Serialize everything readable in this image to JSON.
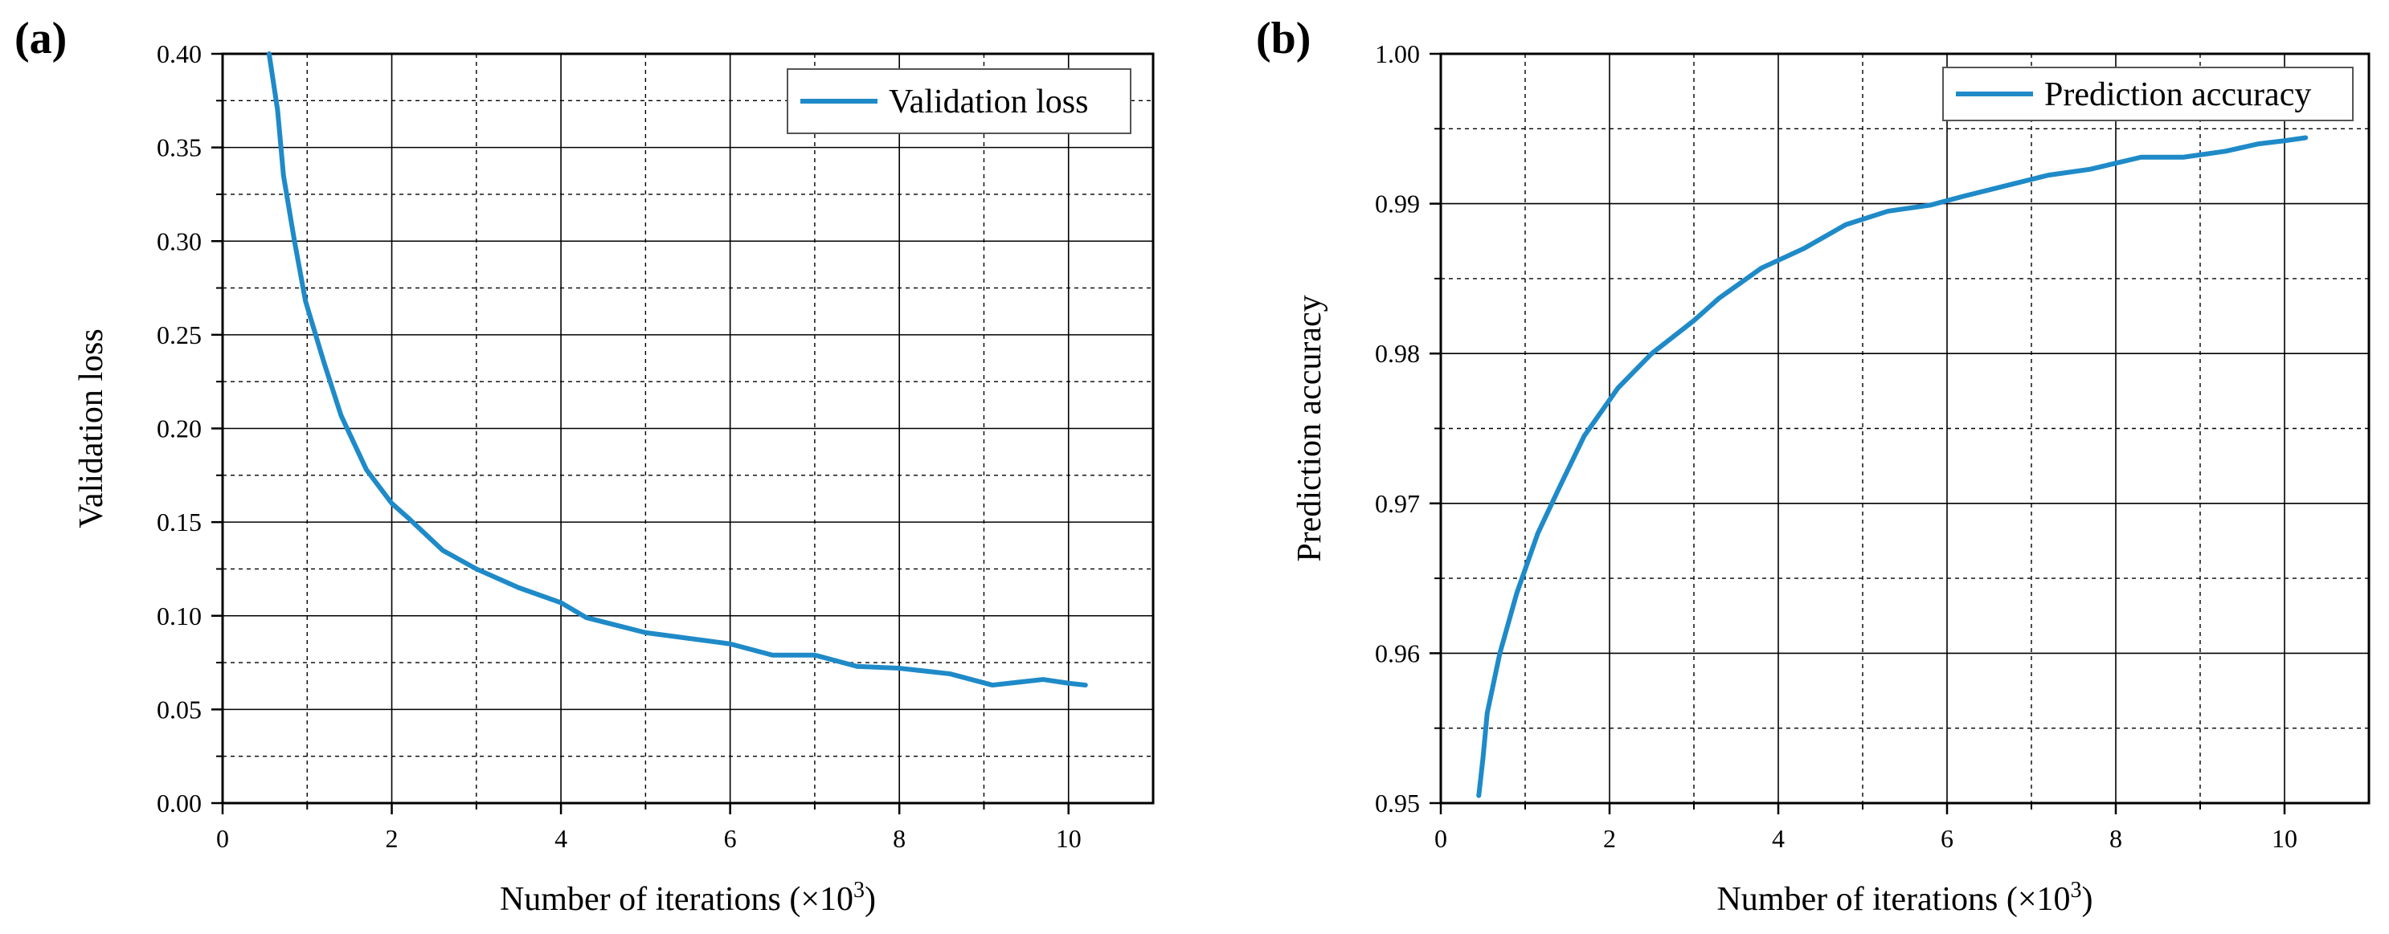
{
  "colors": {
    "series": "#1f8ac8",
    "axis": "#000000",
    "grid": "#000000",
    "minor_grid": "#7a7a7a"
  },
  "chart_data": [
    {
      "type": "line",
      "panel_label": "(a)",
      "xlabel": "Number of iterations (×10",
      "xlabel_sup": "3",
      "xlabel_end": ")",
      "ylabel": "Validation loss",
      "xlim": [
        0,
        11
      ],
      "ylim": [
        0,
        0.4
      ],
      "xticks": [
        0,
        2,
        4,
        6,
        8,
        10
      ],
      "xtick_labels": [
        "0",
        "2",
        "4",
        "6",
        "8",
        "10"
      ],
      "yticks": [
        0,
        0.05,
        0.1,
        0.15,
        0.2,
        0.25,
        0.3,
        0.35,
        0.4
      ],
      "ytick_labels": [
        "0.00",
        "0.05",
        "0.10",
        "0.15",
        "0.20",
        "0.25",
        "0.30",
        "0.35",
        "0.40"
      ],
      "major_grid_x": [
        2,
        4,
        6,
        8,
        10
      ],
      "minor_grid_x": [
        1,
        3,
        5,
        7,
        9
      ],
      "major_grid_y": [
        0.05,
        0.1,
        0.15,
        0.2,
        0.25,
        0.3,
        0.35
      ],
      "minor_grid_y": [
        0.025,
        0.075,
        0.125,
        0.175,
        0.225,
        0.275,
        0.325,
        0.375
      ],
      "legend_position": "top-right",
      "series": [
        {
          "name": "Validation loss",
          "x": [
            0.55,
            0.65,
            0.72,
            0.85,
            0.98,
            1.2,
            1.4,
            1.7,
            2.0,
            2.2,
            2.6,
            3.0,
            3.5,
            4.0,
            4.3,
            5.0,
            6.0,
            6.5,
            7.0,
            7.5,
            8.0,
            8.6,
            9.1,
            9.3,
            9.7,
            10.0,
            10.2
          ],
          "y": [
            0.4,
            0.37,
            0.335,
            0.3,
            0.268,
            0.235,
            0.207,
            0.178,
            0.16,
            0.152,
            0.135,
            0.125,
            0.115,
            0.107,
            0.099,
            0.091,
            0.085,
            0.079,
            0.079,
            0.073,
            0.072,
            0.069,
            0.063,
            0.064,
            0.066,
            0.064,
            0.063
          ]
        }
      ]
    },
    {
      "type": "line",
      "panel_label": "(b)",
      "xlabel": "Number of iterations (×10",
      "xlabel_sup": "3",
      "xlabel_end": ")",
      "ylabel": "Prediction accuracy",
      "xlim": [
        0,
        11
      ],
      "ylim": [
        0.95,
        1.0
      ],
      "xticks": [
        0,
        2,
        4,
        6,
        8,
        10
      ],
      "xtick_labels": [
        "0",
        "2",
        "4",
        "6",
        "8",
        "10"
      ],
      "yticks": [
        0.95,
        0.96,
        0.97,
        0.98,
        0.99,
        1.0
      ],
      "ytick_labels": [
        "0.95",
        "0.96",
        "0.97",
        "0.98",
        "0.99",
        "1.00"
      ],
      "major_grid_x": [
        2,
        4,
        6,
        8,
        10
      ],
      "minor_grid_x": [
        1,
        3,
        5,
        7,
        9
      ],
      "major_grid_y": [
        0.96,
        0.97,
        0.98,
        0.99
      ],
      "minor_grid_y": [
        0.955,
        0.965,
        0.975,
        0.985,
        0.995
      ],
      "legend_position": "top-right",
      "series": [
        {
          "name": "Prediction accuracy",
          "x": [
            0.45,
            0.5,
            0.55,
            0.7,
            0.9,
            1.15,
            1.4,
            1.7,
            2.1,
            2.5,
            3.0,
            3.3,
            3.8,
            4.3,
            4.8,
            5.3,
            5.8,
            6.2,
            6.7,
            7.2,
            7.7,
            8.0,
            8.3,
            8.8,
            9.3,
            9.7,
            10.0,
            10.25
          ],
          "y": [
            0.9505,
            0.953,
            0.956,
            0.96,
            0.964,
            0.968,
            0.971,
            0.9745,
            0.9777,
            0.98,
            0.9822,
            0.9837,
            0.9857,
            0.987,
            0.9886,
            0.9895,
            0.9899,
            0.9905,
            0.9912,
            0.9919,
            0.9923,
            0.9927,
            0.9931,
            0.9931,
            0.9935,
            0.994,
            0.9942,
            0.9944
          ]
        }
      ]
    }
  ]
}
